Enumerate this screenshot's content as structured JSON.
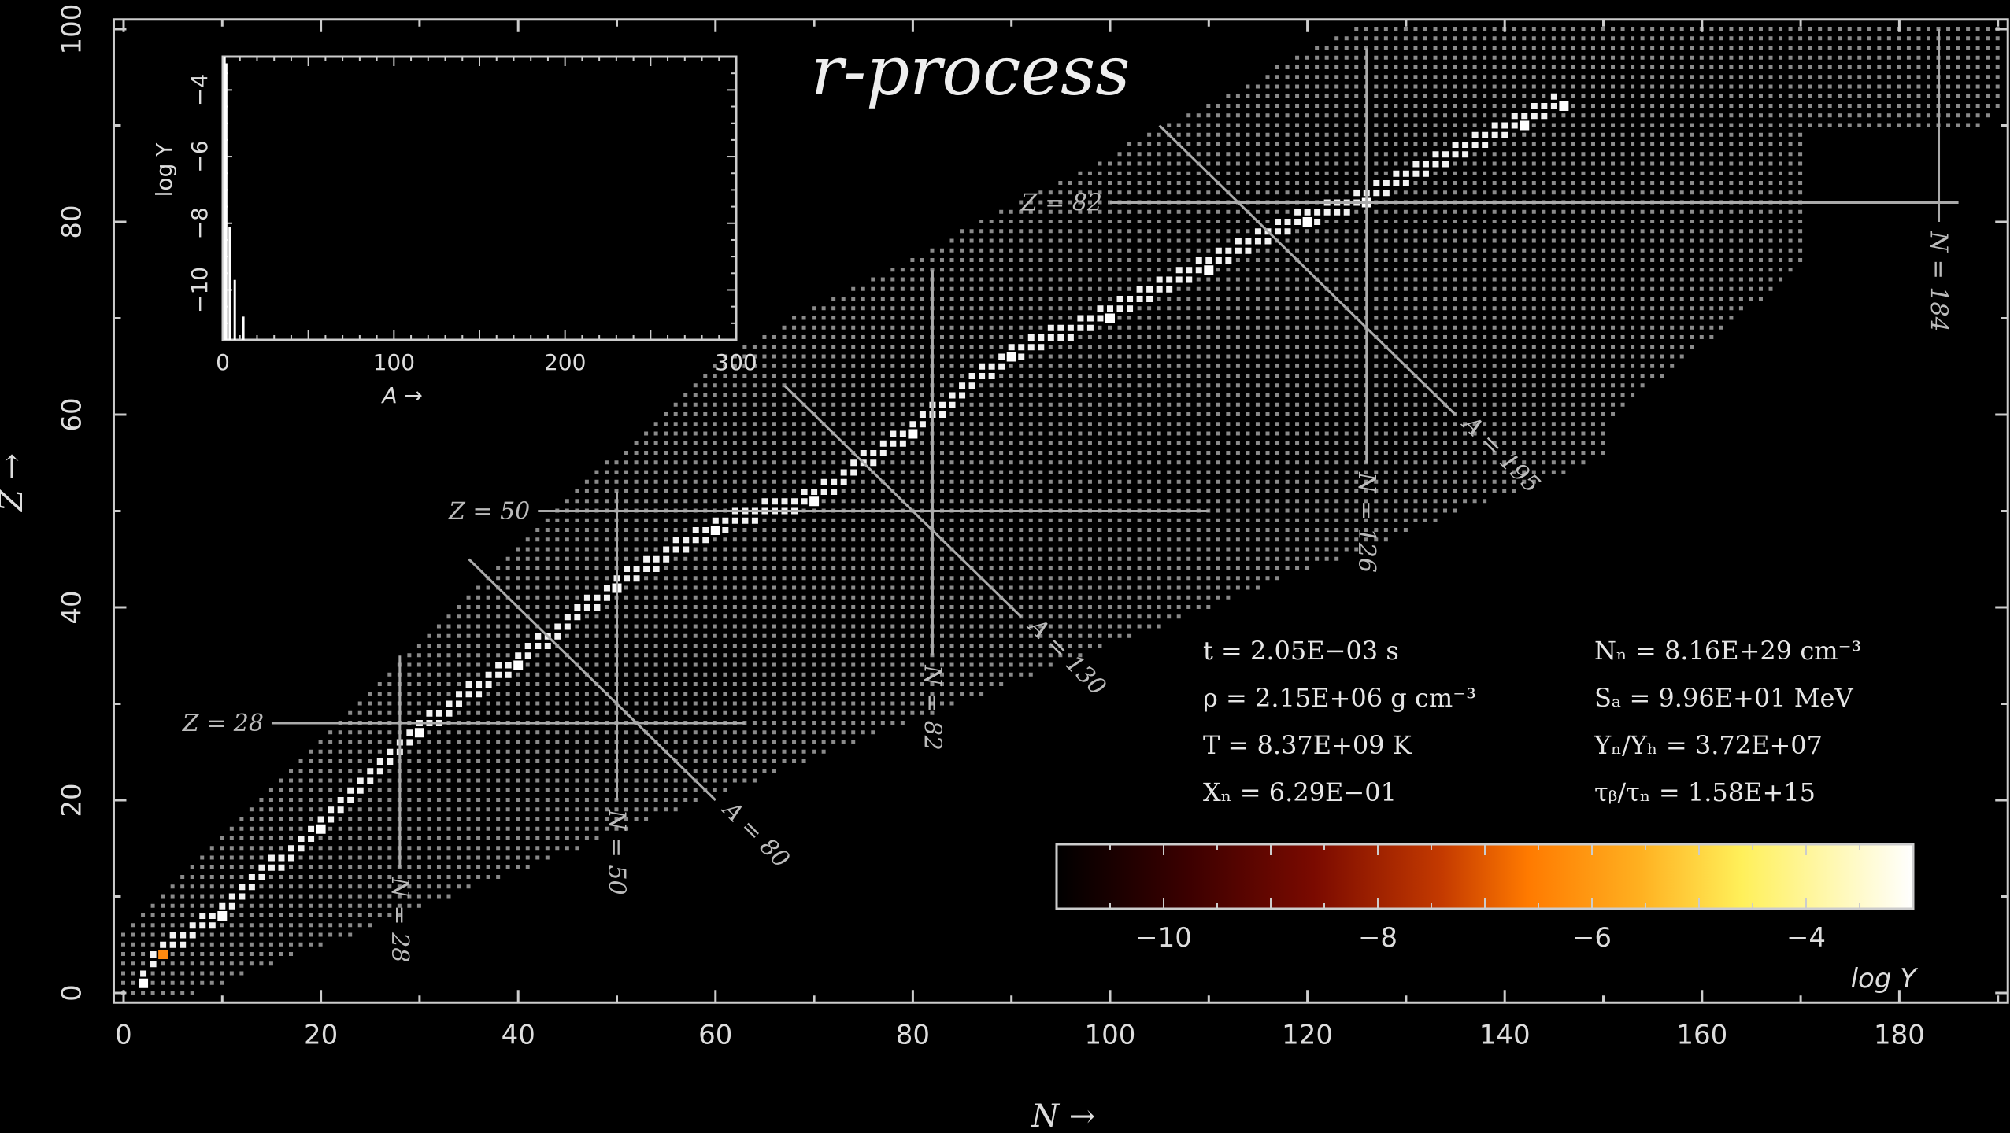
{
  "chart_data": {
    "type": "heatmap",
    "title": "r-process",
    "xlabel": "N →",
    "ylabel": "Z →",
    "xlim": [
      -1,
      191
    ],
    "ylim": [
      -1,
      101
    ],
    "xticks": [
      0,
      20,
      40,
      60,
      80,
      100,
      120,
      140,
      160,
      180
    ],
    "yticks": [
      0,
      20,
      40,
      60,
      80,
      100
    ],
    "grid": false,
    "conditions": [
      {
        "label": "t",
        "text": "t = 2.05E−03 s"
      },
      {
        "label": "rho",
        "text": "ρ = 2.15E+06 g cm⁻³"
      },
      {
        "label": "T",
        "text": "T = 8.37E+09 K"
      },
      {
        "label": "Xn",
        "text": "Xₙ = 6.29E−01"
      },
      {
        "label": "Nn",
        "text": "Nₙ = 8.16E+29 cm⁻³"
      },
      {
        "label": "Sa",
        "text": "Sₐ = 9.96E+01 MeV"
      },
      {
        "label": "YnYh",
        "text": "Yₙ/Yₕ = 3.72E+07"
      },
      {
        "label": "tau",
        "text": "τᵦ/τₙ = 1.58E+15"
      }
    ],
    "magic_lines": [
      {
        "kind": "Z",
        "label": "Z = 28",
        "value": 28,
        "n_from": 15,
        "n_to": 63
      },
      {
        "kind": "Z",
        "label": "Z = 50",
        "value": 50,
        "n_from": 42,
        "n_to": 110
      },
      {
        "kind": "Z",
        "label": "Z = 82",
        "value": 82,
        "n_from": 100,
        "n_to": 186
      },
      {
        "kind": "N",
        "label": "N = 28",
        "value": 28,
        "z_from": 13,
        "z_to": 35
      },
      {
        "kind": "N",
        "label": "N = 50",
        "value": 50,
        "z_from": 20,
        "z_to": 52
      },
      {
        "kind": "N",
        "label": "N = 82",
        "value": 82,
        "z_from": 35,
        "z_to": 75
      },
      {
        "kind": "N",
        "label": "N = 126",
        "value": 126,
        "z_from": 55,
        "z_to": 98
      },
      {
        "kind": "N",
        "label": "N = 184",
        "value": 184,
        "z_from": 80,
        "z_to": 100
      },
      {
        "kind": "A",
        "label": "A = 80",
        "value": 80,
        "n_from": 35,
        "n_to": 60
      },
      {
        "kind": "A",
        "label": "A = 130",
        "value": 130,
        "n_from": 67,
        "n_to": 91
      },
      {
        "kind": "A",
        "label": "A = 195",
        "value": 195,
        "n_from": 105,
        "n_to": 135
      }
    ],
    "path_sample": [
      {
        "n": 2,
        "z": 1,
        "logY": -4
      },
      {
        "n": 4,
        "z": 4,
        "logY": -8
      },
      {
        "n": 10,
        "z": 8
      },
      {
        "n": 20,
        "z": 17
      },
      {
        "n": 30,
        "z": 27
      },
      {
        "n": 40,
        "z": 34
      },
      {
        "n": 50,
        "z": 42
      },
      {
        "n": 60,
        "z": 48
      },
      {
        "n": 70,
        "z": 51
      },
      {
        "n": 80,
        "z": 58
      },
      {
        "n": 90,
        "z": 66
      },
      {
        "n": 100,
        "z": 70
      },
      {
        "n": 110,
        "z": 75
      },
      {
        "n": 120,
        "z": 80
      },
      {
        "n": 126,
        "z": 82
      },
      {
        "n": 142,
        "z": 90
      },
      {
        "n": 146,
        "z": 92
      }
    ],
    "colorbar": {
      "label": "log Y",
      "range": [
        -11,
        -3
      ],
      "ticks": [
        -10,
        -8,
        -6,
        -4
      ],
      "colors": [
        "#000000",
        "#3a0000",
        "#7a0a00",
        "#c43a00",
        "#ff7a00",
        "#ffb020",
        "#fff05a",
        "#ffffff"
      ]
    },
    "inset": {
      "xlabel": "A →",
      "ylabel": "log Y",
      "xlim": [
        0,
        300
      ],
      "ylim": [
        -11.5,
        -3
      ],
      "xticks": [
        0,
        100,
        200,
        300
      ],
      "yticks": [
        -4,
        -6,
        -8,
        -10
      ],
      "bars": [
        {
          "a": 1,
          "logY": -3
        },
        {
          "a": 2,
          "logY": -3.2
        },
        {
          "a": 4,
          "logY": -8.1
        },
        {
          "a": 7,
          "logY": -9.7
        },
        {
          "a": 12,
          "logY": -10.8
        }
      ]
    }
  }
}
